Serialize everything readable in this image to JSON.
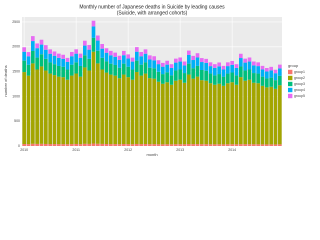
{
  "chart_data": {
    "type": "stacked_bar",
    "title": "Monthly number of Japanese deaths in Suicide by leading causes",
    "subtitle": "(Suicide, with arranged cohorts)",
    "x_label": "month",
    "y_label": "number of deaths",
    "legend_title": "group",
    "categories": [
      "2010",
      null,
      null,
      null,
      null,
      null,
      null,
      null,
      null,
      null,
      null,
      null,
      "2011",
      null,
      null,
      null,
      null,
      null,
      null,
      null,
      null,
      null,
      null,
      null,
      "2012",
      null,
      null,
      null,
      null,
      null,
      null,
      null,
      null,
      null,
      null,
      null,
      "2013",
      null,
      null,
      null,
      null,
      null,
      null,
      null,
      null,
      null,
      null,
      null,
      "2014",
      null,
      null,
      null,
      null,
      null,
      null,
      null,
      null,
      null,
      null,
      null
    ],
    "series": [
      {
        "name": "group1",
        "color": "#F8766D",
        "values": [
          40,
          38,
          45,
          42,
          44,
          41,
          40,
          39,
          38,
          37,
          36,
          39,
          41,
          38,
          44,
          42,
          50,
          45,
          42,
          40,
          39,
          38,
          37,
          40,
          38,
          36,
          41,
          39,
          40,
          38,
          37,
          35,
          34,
          35,
          34,
          36,
          37,
          35,
          40,
          38,
          39,
          37,
          36,
          35,
          34,
          35,
          33,
          35,
          36,
          34,
          38,
          36,
          37,
          35,
          35,
          33,
          32,
          33,
          32,
          34
        ]
      },
      {
        "name": "group2",
        "color": "#A3A500",
        "values": [
          1450,
          1380,
          1620,
          1500,
          1560,
          1480,
          1420,
          1390,
          1360,
          1350,
          1300,
          1380,
          1420,
          1360,
          1540,
          1480,
          1850,
          1620,
          1500,
          1440,
          1400,
          1380,
          1330,
          1400,
          1350,
          1300,
          1450,
          1380,
          1420,
          1330,
          1320,
          1260,
          1220,
          1250,
          1200,
          1280,
          1300,
          1240,
          1400,
          1320,
          1360,
          1290,
          1280,
          1230,
          1200,
          1220,
          1180,
          1230,
          1250,
          1200,
          1350,
          1280,
          1300,
          1240,
          1230,
          1180,
          1150,
          1160,
          1120,
          1190
        ]
      },
      {
        "name": "group3",
        "color": "#00BF7D",
        "values": [
          230,
          220,
          250,
          240,
          245,
          235,
          225,
          220,
          215,
          210,
          205,
          220,
          225,
          215,
          245,
          235,
          280,
          255,
          235,
          225,
          220,
          215,
          210,
          220,
          210,
          205,
          230,
          220,
          225,
          210,
          210,
          200,
          195,
          200,
          190,
          205,
          205,
          195,
          220,
          210,
          215,
          205,
          200,
          195,
          190,
          195,
          185,
          195,
          195,
          190,
          215,
          205,
          205,
          195,
          195,
          185,
          180,
          185,
          175,
          190
        ]
      },
      {
        "name": "group4",
        "color": "#00B0F6",
        "values": [
          180,
          170,
          200,
          190,
          195,
          185,
          175,
          170,
          165,
          160,
          155,
          170,
          175,
          165,
          195,
          185,
          230,
          205,
          185,
          175,
          170,
          165,
          160,
          170,
          165,
          160,
          180,
          170,
          175,
          165,
          160,
          155,
          150,
          155,
          150,
          160,
          160,
          155,
          175,
          165,
          170,
          160,
          160,
          150,
          150,
          155,
          145,
          150,
          155,
          150,
          170,
          160,
          160,
          155,
          150,
          145,
          140,
          145,
          140,
          150
        ]
      },
      {
        "name": "group5",
        "color": "#E76BF3",
        "values": [
          90,
          85,
          100,
          95,
          98,
          92,
          88,
          86,
          84,
          82,
          80,
          86,
          88,
          84,
          98,
          94,
          115,
          102,
          94,
          90,
          88,
          84,
          82,
          86,
          84,
          80,
          92,
          86,
          88,
          84,
          82,
          78,
          76,
          78,
          75,
          80,
          82,
          78,
          88,
          84,
          86,
          80,
          80,
          76,
          75,
          78,
          72,
          76,
          78,
          75,
          86,
          80,
          82,
          78,
          76,
          72,
          70,
          72,
          70,
          76
        ]
      }
    ],
    "ylim": [
      0,
      2600
    ],
    "yticks": [
      0,
      500,
      1000,
      1500,
      2000,
      2500
    ],
    "grid": true
  }
}
